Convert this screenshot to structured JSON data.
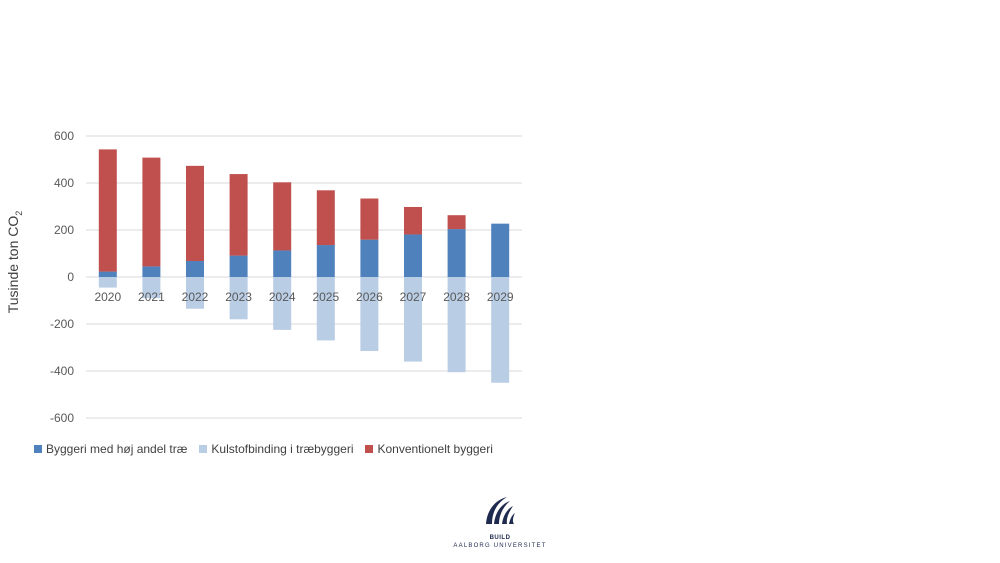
{
  "chart_data": {
    "type": "bar",
    "stacked": true,
    "categories": [
      "2020",
      "2021",
      "2022",
      "2023",
      "2024",
      "2025",
      "2026",
      "2027",
      "2028",
      "2029"
    ],
    "series": [
      {
        "name": "Byggeri med høj andel træ",
        "color": "#4f81bd",
        "values": [
          23,
          45,
          68,
          91,
          113,
          136,
          159,
          181,
          204,
          227
        ]
      },
      {
        "name": "Kulstofbinding i træbyggeri",
        "color": "#b9cde5",
        "values": [
          -45,
          -90,
          -135,
          -180,
          -225,
          -270,
          -315,
          -360,
          -405,
          -450
        ]
      },
      {
        "name": "Konventionelt byggeri",
        "color": "#c0504d",
        "values": [
          520,
          463,
          405,
          347,
          290,
          233,
          175,
          117,
          59,
          0
        ]
      }
    ],
    "yticks": [
      "600",
      "400",
      "200",
      "0",
      "-200",
      "-400",
      "-600"
    ],
    "ylim": [
      -600,
      600
    ],
    "ylabel_main": "Tusinde ton CO",
    "ylabel_sub": "2",
    "legend_position": "bottom",
    "grid": true
  },
  "logo": {
    "line1": "BUILD",
    "line2": "AALBORG UNIVERSITET"
  }
}
